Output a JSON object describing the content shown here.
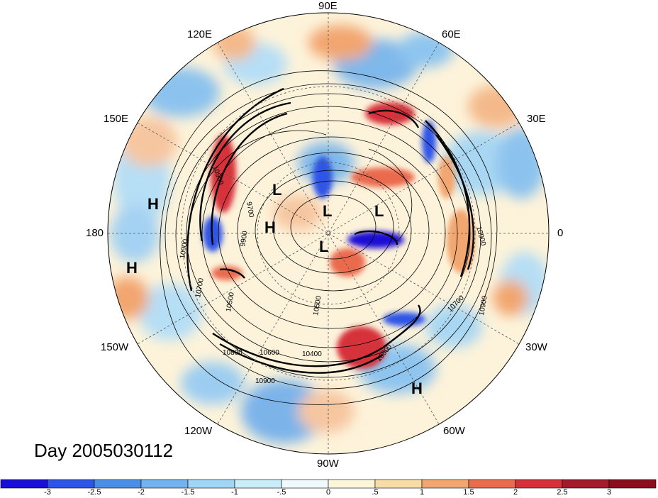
{
  "map": {
    "projection": "north polar stereographic",
    "longitude_labels": [
      "90E",
      "60E",
      "30E",
      "0",
      "30W",
      "60W",
      "90W",
      "120W",
      "150W",
      "180",
      "150E",
      "120E"
    ],
    "pressure_centers": [
      "L",
      "L",
      "L",
      "L",
      "H",
      "H",
      "H",
      "H"
    ],
    "contour_labels": [
      "10900",
      "10900",
      "10900",
      "10900",
      "10800",
      "10800",
      "10700",
      "10700",
      "10500",
      "10400",
      "9900",
      "9700",
      "10500",
      "10600",
      "10900"
    ]
  },
  "title": "Day 2005030112",
  "colorbar": {
    "ticks": [
      "-3",
      "-2.5",
      "-2",
      "-1.5",
      "-1",
      "-.5",
      "0",
      ".5",
      "1",
      "1.5",
      "2",
      "2.5",
      "3"
    ],
    "colors": [
      "#1a0fd6",
      "#2d55e6",
      "#4a8ee8",
      "#72b4ef",
      "#9fd6f5",
      "#c9eef9",
      "#eefafc",
      "#fcf6d9",
      "#f8dca6",
      "#f2a66f",
      "#ea6b4d",
      "#d6303a",
      "#a51a2a",
      "#8c0d1c"
    ]
  },
  "colors": {
    "positive": "#d6303a",
    "negative": "#2d55e6",
    "contour": "#000000"
  }
}
